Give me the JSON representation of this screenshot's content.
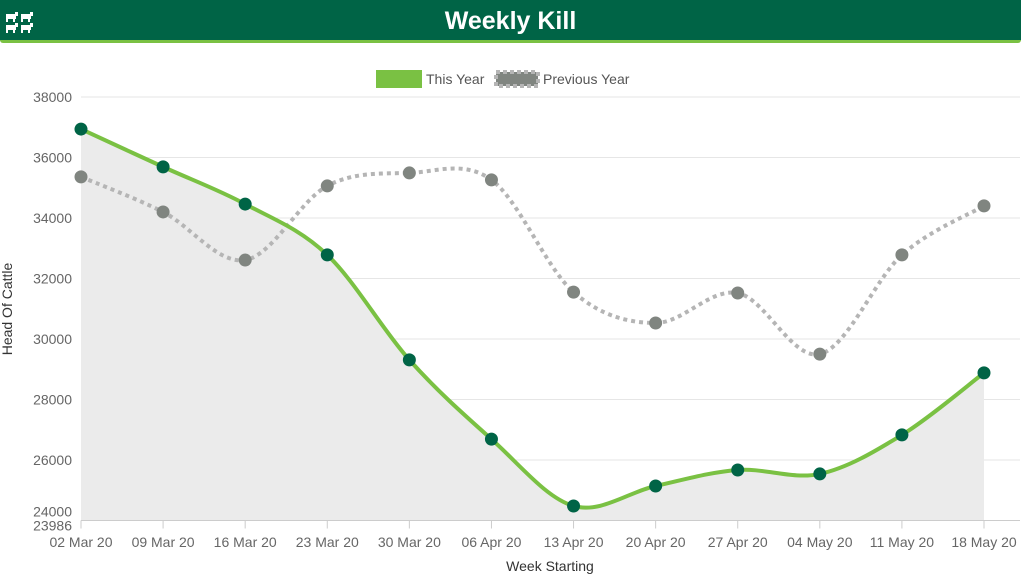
{
  "header": {
    "title": "Weekly Kill",
    "logo_icon": "cattle-icon"
  },
  "chart_data": {
    "type": "line",
    "title": "Weekly Kill",
    "xlabel": "Week Starting",
    "ylabel": "Head Of Cattle",
    "ylim": [
      23986,
      38000
    ],
    "yticks": [
      "38000",
      "36000",
      "34000",
      "32000",
      "30000",
      "28000",
      "26000",
      "24000",
      "23986"
    ],
    "ytick_values": [
      38000,
      36000,
      34000,
      32000,
      30000,
      28000,
      26000,
      24000,
      23986
    ],
    "categories": [
      "02 Mar 20",
      "09 Mar 20",
      "16 Mar 20",
      "23 Mar 20",
      "30 Mar 20",
      "06 Apr 20",
      "13 Apr 20",
      "20 Apr 20",
      "27 Apr 20",
      "04 May 20",
      "11 May 20",
      "18 May 20"
    ],
    "legend_position": "top-center",
    "grid": true,
    "series": [
      {
        "name": "This Year",
        "color": "#7ac143",
        "marker": "#006446",
        "style": "solid",
        "area": true,
        "values": [
          36940,
          35690,
          34460,
          32780,
          29310,
          26690,
          24480,
          25140,
          25670,
          25540,
          26830,
          28880
        ]
      },
      {
        "name": "Previous Year",
        "color": "#b5b5b5",
        "marker": "#808580",
        "style": "dotted",
        "values": [
          35360,
          34200,
          32610,
          35060,
          35490,
          35260,
          31550,
          30530,
          31520,
          29500,
          32780,
          34400
        ]
      }
    ]
  }
}
